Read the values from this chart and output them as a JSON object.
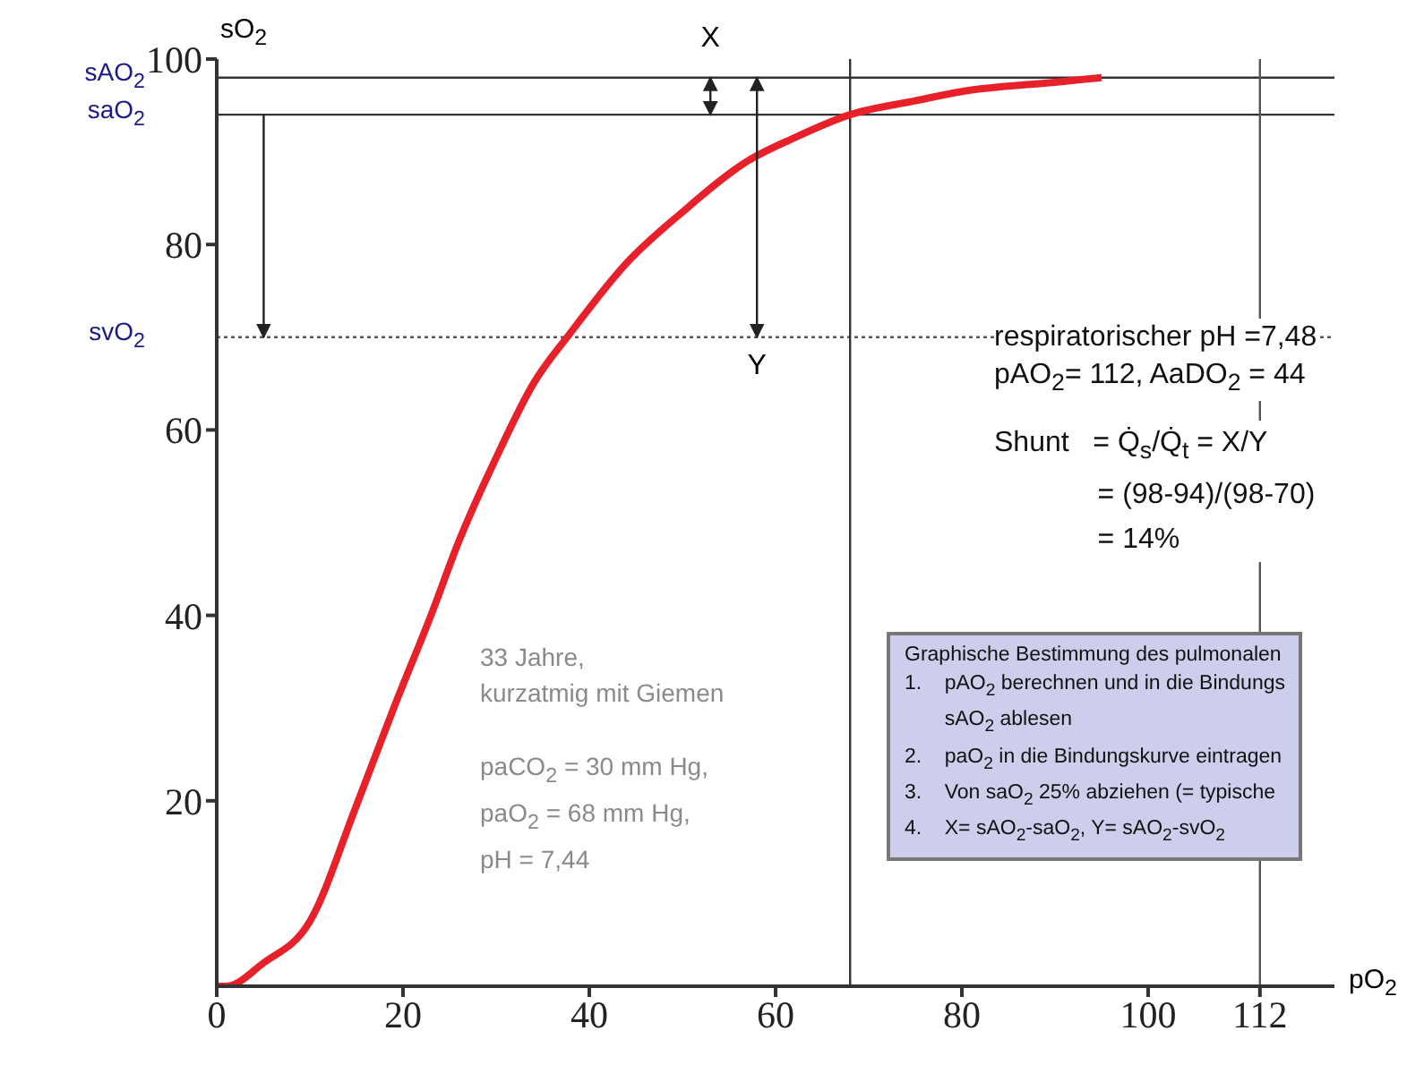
{
  "chart_data": {
    "type": "line",
    "xlabel": "pO$_{2}$",
    "ylabel": "sO$_{2}$",
    "x": [
      0,
      1,
      5,
      10,
      15,
      19,
      23,
      26,
      30,
      34,
      38,
      44,
      50,
      57,
      62,
      68,
      75,
      80,
      90,
      95
    ],
    "series": [
      {
        "color": "#e8202a",
        "values": [
          0,
          0,
          2.5,
          7,
          19.5,
          30,
          40,
          48,
          57,
          65,
          70.5,
          78,
          83.5,
          89,
          91.5,
          94,
          95.5,
          96.5,
          97.5,
          98
        ]
      }
    ],
    "xlim": [
      0,
      120
    ],
    "xticks": [
      0,
      20,
      40,
      60,
      80,
      100,
      112
    ],
    "ylim": [
      0,
      100
    ],
    "yticks": [
      20,
      40,
      60,
      80,
      100
    ],
    "grid": false,
    "legend": false,
    "marker": "none",
    "line_style": "solid",
    "ref_lines": [
      {
        "axis": "y",
        "value": 98,
        "label": "sAO$_{2}$",
        "color": "#333333"
      },
      {
        "axis": "y",
        "value": 94,
        "label": "saO$_{2}$",
        "color": "#333333"
      },
      {
        "axis": "y",
        "value": 70,
        "label": "svO$_{2}$",
        "color": "#555555",
        "line_style": "dotted"
      },
      {
        "axis": "x",
        "value": 68,
        "color": "#333333"
      },
      {
        "axis": "x",
        "value": 112,
        "color": "#555555"
      }
    ],
    "annotations": [
      {
        "text": "X",
        "x": 53,
        "y": 98
      },
      {
        "text": "Y",
        "x": 58,
        "y": 70
      },
      "respiratorischer pH =7,48\npAO$_{2}$= 112, AaDO$_{2}$ = 44",
      "Shunt   = Q̇$_{s}$/Q̇$_{t}$ = X/Y\n             = (98-94)/(98-70)\n             = 14%",
      "33 Jahre,\nkurzatmig mit Giemen",
      "paCO$_{2}$ = 30 mm Hg,\npaO$_{2}$ = 68 mm Hg,\npH = 7,44",
      "Graphische Bestimmung des pulmonalen\n1.    pAO$_{2}$ berechnen und in die Bindungs\n       sAO$_{2}$ ablesen\n2.    paO$_{2}$ in die Bindungskurve eintragen\n3.    Von saO$_{2}$ 25% abziehen (= typische\n4.    X= sAO$_{2}$-saO$_{2}$, Y= sAO$_{2}$-svO$_{2}$"
    ]
  }
}
